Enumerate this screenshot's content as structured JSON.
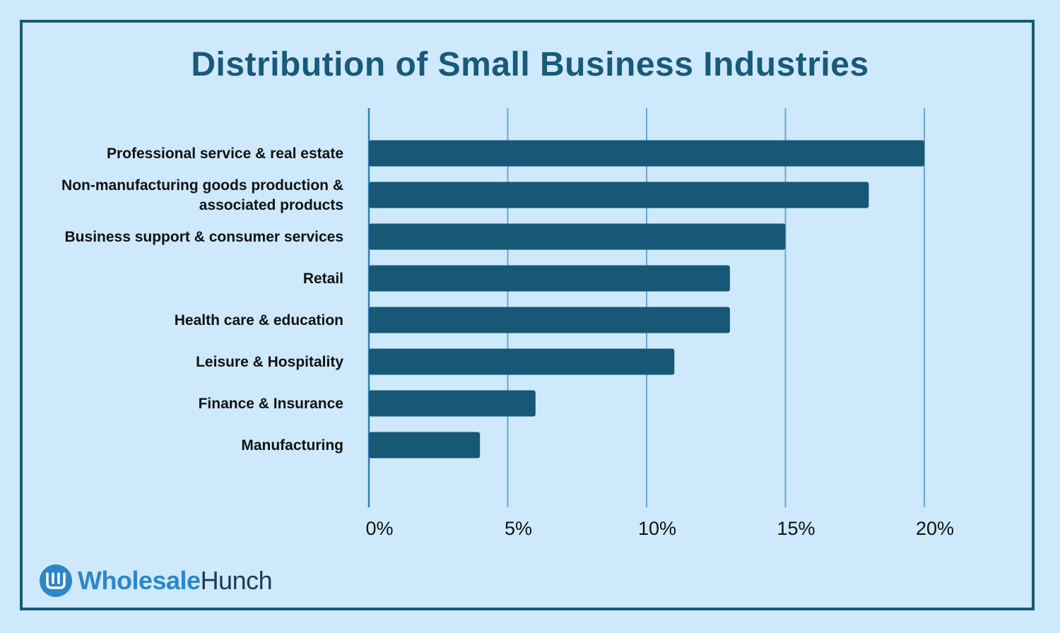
{
  "chart_data": {
    "type": "bar",
    "orientation": "horizontal",
    "title": "Distribution of Small Business Industries",
    "categories": [
      [
        "Professional service & real estate"
      ],
      [
        "Non-manufacturing goods production &",
        "associated products"
      ],
      [
        "Business support & consumer services"
      ],
      [
        "Retail"
      ],
      [
        "Health care & education"
      ],
      [
        "Leisure & Hospitality"
      ],
      [
        "Finance & Insurance"
      ],
      [
        "Manufacturing"
      ]
    ],
    "values": [
      20,
      18,
      15,
      13,
      13,
      11,
      6,
      4
    ],
    "xlim": [
      0,
      20
    ],
    "ticks": [
      0,
      5,
      10,
      15,
      20
    ],
    "tick_labels": [
      "0%",
      "5%",
      "10%",
      "15%",
      "20%"
    ],
    "grid": true,
    "colors": {
      "background": "#cde9fb",
      "bar": "#175876",
      "grid": "#6aa6cf",
      "title": "#195979"
    }
  },
  "brand": {
    "icon": "wholesale-hunch-w-logo-icon",
    "name_part1": "Wholesale",
    "name_part2": "Hunch"
  }
}
